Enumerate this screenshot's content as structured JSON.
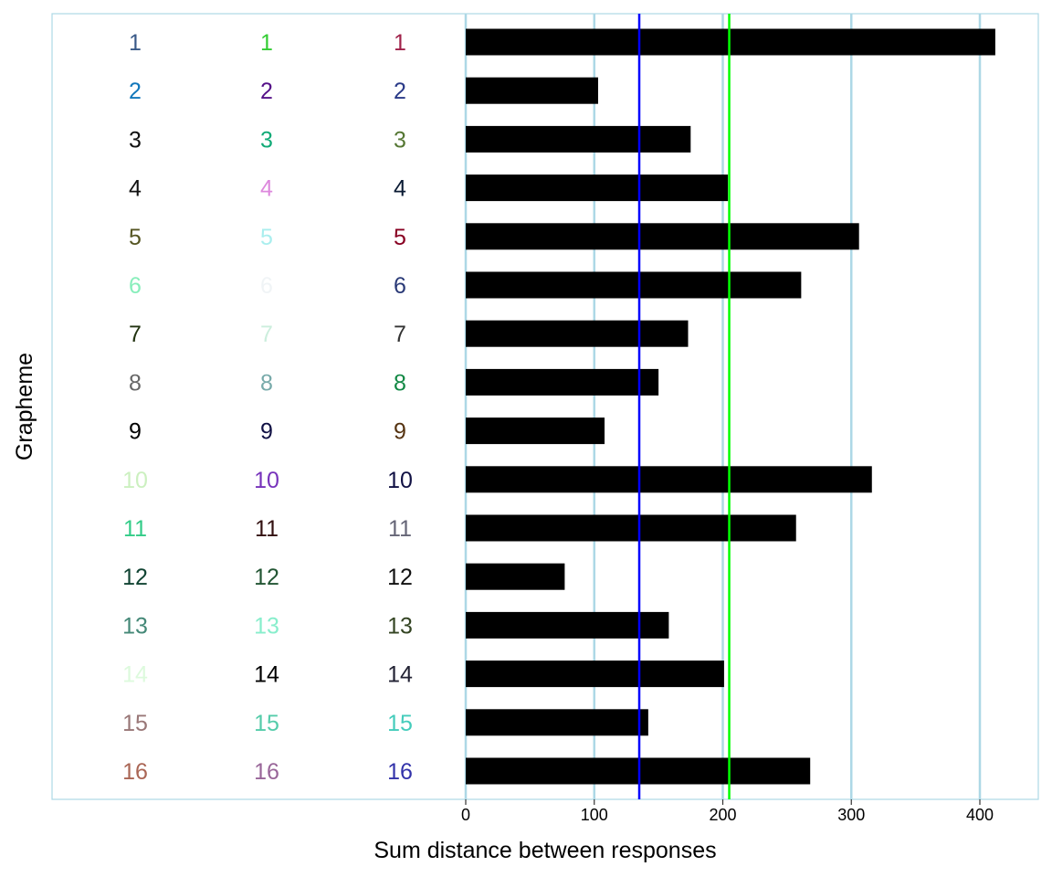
{
  "chart_data": {
    "type": "bar",
    "orientation": "horizontal",
    "xlabel": "Sum distance between responses",
    "ylabel": "Grapheme",
    "xlim": [
      0,
      445
    ],
    "x_ticks": [
      0,
      100,
      200,
      300,
      400
    ],
    "grid": "vertical-major",
    "grid_color": "#add8e6",
    "bar_color": "#000000",
    "categories": [
      "1",
      "2",
      "3",
      "4",
      "5",
      "6",
      "7",
      "8",
      "9",
      "10",
      "11",
      "12",
      "13",
      "14",
      "15",
      "16"
    ],
    "values": [
      412,
      103,
      175,
      204,
      306,
      261,
      173,
      150,
      108,
      316,
      257,
      77,
      158,
      201,
      142,
      268
    ],
    "reference_lines": [
      {
        "value": 135,
        "color": "#0000ff"
      },
      {
        "value": 205,
        "color": "#00ff00"
      }
    ],
    "grapheme_colors": [
      [
        "#3a5a88",
        "#33cc33",
        "#a0224a"
      ],
      [
        "#1177bb",
        "#551188",
        "#2a3a88"
      ],
      [
        "#111111",
        "#11aa77",
        "#557733"
      ],
      [
        "#111111",
        "#dd88dd",
        "#0a1a33"
      ],
      [
        "#555522",
        "#aaeeee",
        "#880022"
      ],
      [
        "#88eebb",
        "#f0f4f6",
        "#2a3a77"
      ],
      [
        "#223311",
        "#cceedd",
        "#333333"
      ],
      [
        "#666666",
        "#77aaaa",
        "#118844"
      ],
      [
        "#000000",
        "#111144",
        "#553311"
      ],
      [
        "#ccf0c0",
        "#7733bb",
        "#111144"
      ],
      [
        "#33cc88",
        "#331111",
        "#666677"
      ],
      [
        "#114433",
        "#225533",
        "#111111"
      ],
      [
        "#448877",
        "#88eecc",
        "#334422"
      ],
      [
        "#ddfadd",
        "#000000",
        "#222233"
      ],
      [
        "#997777",
        "#55ccaa",
        "#44ccbb"
      ],
      [
        "#aa6655",
        "#996699",
        "#3333aa"
      ]
    ]
  }
}
